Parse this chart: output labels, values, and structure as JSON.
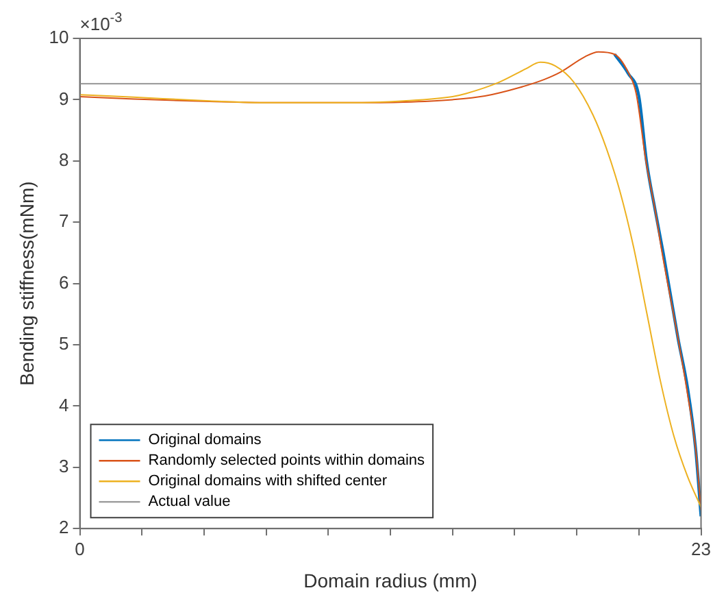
{
  "chart_data": {
    "type": "line",
    "xlabel": "Domain radius (mm)",
    "ylabel": "Bending stiffness(mNm)",
    "annotations": [
      "×10$^{-3}$"
    ],
    "xlim": [
      0,
      23
    ],
    "xticks": [
      0,
      {
        "value": 2.3,
        "label": null
      },
      {
        "value": 4.6,
        "label": null
      },
      {
        "value": 6.9,
        "label": null
      },
      {
        "value": 9.2,
        "label": null
      },
      {
        "value": 11.5,
        "label": null
      },
      {
        "value": 13.8,
        "label": null
      },
      {
        "value": 16.1,
        "label": null
      },
      {
        "value": 18.4,
        "label": null
      },
      {
        "value": 20.7,
        "label": null
      },
      23
    ],
    "ylim": [
      2,
      10
    ],
    "yticks": [
      2,
      3,
      4,
      5,
      6,
      7,
      8,
      9,
      10
    ],
    "grid": false,
    "legend": "bottom left",
    "marker": "none",
    "line_style": "solid",
    "series": [
      {
        "name": "Original domains",
        "color": "#0072bd",
        "x": [
          19.8,
          20.3,
          20.7,
          20.98,
          21.3,
          21.6,
          22.15,
          22.5,
          22.8,
          23
        ],
        "values": [
          9.74,
          9.43,
          9.05,
          8.0,
          7.2,
          6.5,
          5.1,
          4.3,
          3.3,
          2.2
        ]
      },
      {
        "name": "Randomly selected points within domains",
        "color": "#d95319",
        "x": [
          0,
          2,
          4.8,
          7,
          10,
          12,
          13.8,
          15,
          16.3,
          17.2,
          17.8,
          18.7,
          19.2,
          19.8,
          20.3,
          20.6,
          20.96,
          21.3,
          21.56,
          22.15,
          22.5,
          22.8,
          23
        ],
        "values": [
          9.05,
          9.01,
          8.97,
          8.95,
          8.95,
          8.96,
          9.0,
          9.06,
          9.2,
          9.33,
          9.45,
          9.7,
          9.78,
          9.74,
          9.45,
          9.1,
          8.0,
          7.2,
          6.5,
          5.1,
          4.2,
          3.3,
          2.3
        ]
      },
      {
        "name": "Original domains with shifted center",
        "color": "#edb120",
        "x": [
          0,
          2,
          4.8,
          7,
          10,
          12,
          13.8,
          14.3,
          15.5,
          16.5,
          17.05,
          17.6,
          18.3,
          19,
          19.5,
          20,
          20.5,
          21,
          21.5,
          22,
          22.5,
          23
        ],
        "values": [
          9.08,
          9.04,
          8.98,
          8.95,
          8.95,
          8.98,
          9.05,
          9.1,
          9.28,
          9.5,
          9.61,
          9.55,
          9.28,
          8.75,
          8.2,
          7.5,
          6.6,
          5.5,
          4.4,
          3.5,
          2.85,
          2.35
        ]
      }
    ],
    "ref_lines": [
      {
        "axis": "y",
        "value": 9.26,
        "label": "Actual value",
        "color": "#a0a0a0"
      }
    ]
  }
}
